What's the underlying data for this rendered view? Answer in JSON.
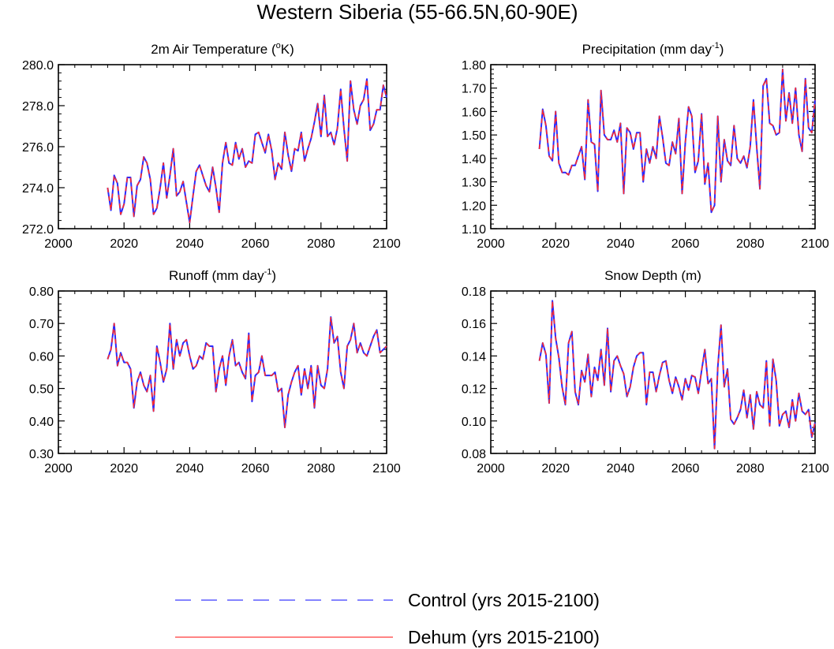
{
  "figure": {
    "title": "Western Siberia (55-66.5N,60-90E)"
  },
  "legend": {
    "entries": [
      {
        "label": "Control (yrs 2015-2100)",
        "color": "#3b3bff",
        "style": "dashed"
      },
      {
        "label": "Dehum (yrs 2015-2100)",
        "color": "#ff3b3b",
        "style": "solid"
      }
    ]
  },
  "colors": {
    "control": "#2a2aff",
    "dehum": "#ff2a2a",
    "axis": "#000000"
  },
  "chart_data": [
    {
      "id": "temperature",
      "type": "line",
      "title": "2m Air Temperature (",
      "title_sup": "o",
      "title_tail": "K)",
      "xlim": [
        2000,
        2100
      ],
      "ylim": [
        272,
        280
      ],
      "yticks": [
        "272.0",
        "274.0",
        "276.0",
        "278.0",
        "280.0"
      ],
      "xticks": [
        "2000",
        "2020",
        "2040",
        "2060",
        "2080",
        "2100"
      ],
      "x_start": 2015,
      "series": [
        {
          "name": "Control (yrs 2015-2100)",
          "values": [
            274.0,
            272.9,
            274.6,
            274.2,
            272.7,
            273.2,
            274.5,
            274.5,
            272.6,
            274.1,
            274.4,
            275.5,
            275.2,
            274.4,
            272.7,
            273.0,
            274.0,
            275.2,
            273.5,
            274.6,
            275.9,
            273.6,
            273.8,
            274.3,
            273.3,
            272.3,
            273.6,
            274.8,
            275.1,
            274.6,
            274.1,
            273.8,
            275.0,
            274.0,
            272.8,
            275.2,
            276.2,
            275.2,
            275.1,
            276.2,
            275.4,
            275.9,
            275.0,
            275.3,
            275.2,
            276.6,
            276.7,
            276.2,
            275.7,
            276.6,
            275.8,
            274.4,
            275.2,
            274.9,
            276.7,
            275.6,
            274.8,
            275.9,
            275.8,
            276.7,
            275.3,
            275.9,
            276.4,
            277.2,
            278.1,
            276.5,
            278.5,
            276.5,
            276.7,
            276.1,
            276.9,
            278.8,
            276.9,
            275.3,
            279.2,
            277.8,
            277.1,
            278.0,
            278.3,
            279.3,
            276.8,
            277.1,
            277.8,
            277.8,
            279.0,
            278.4
          ]
        },
        {
          "name": "Dehum (yrs 2015-2100)",
          "values": [
            274.0,
            272.9,
            274.6,
            274.2,
            272.7,
            273.2,
            274.5,
            274.5,
            272.6,
            274.1,
            274.4,
            275.5,
            275.2,
            274.4,
            272.7,
            273.0,
            274.0,
            275.2,
            273.5,
            274.6,
            275.9,
            273.6,
            273.8,
            274.3,
            273.3,
            272.3,
            273.6,
            274.8,
            275.1,
            274.6,
            274.1,
            273.8,
            275.0,
            274.0,
            272.8,
            275.2,
            276.2,
            275.2,
            275.1,
            276.2,
            275.4,
            275.9,
            275.0,
            275.3,
            275.2,
            276.6,
            276.7,
            276.2,
            275.7,
            276.6,
            275.8,
            274.4,
            275.2,
            274.9,
            276.7,
            275.6,
            274.8,
            275.9,
            275.8,
            276.7,
            275.3,
            275.9,
            276.4,
            277.2,
            278.1,
            276.5,
            278.5,
            276.5,
            276.7,
            276.1,
            276.9,
            278.8,
            276.9,
            275.3,
            279.2,
            277.8,
            277.1,
            278.0,
            278.3,
            279.3,
            276.8,
            277.1,
            277.8,
            277.8,
            279.0,
            278.4
          ]
        }
      ]
    },
    {
      "id": "precip",
      "type": "line",
      "title": "Precipitation (mm day",
      "title_sup": "-1",
      "title_tail": ")",
      "xlim": [
        2000,
        2100
      ],
      "ylim": [
        1.1,
        1.8
      ],
      "yticks": [
        "1.10",
        "1.20",
        "1.30",
        "1.40",
        "1.50",
        "1.60",
        "1.70",
        "1.80"
      ],
      "xticks": [
        "2000",
        "2020",
        "2040",
        "2060",
        "2080",
        "2100"
      ],
      "x_start": 2015,
      "series": [
        {
          "name": "Control (yrs 2015-2100)",
          "values": [
            1.44,
            1.61,
            1.54,
            1.41,
            1.39,
            1.6,
            1.38,
            1.34,
            1.34,
            1.33,
            1.37,
            1.37,
            1.41,
            1.45,
            1.31,
            1.65,
            1.47,
            1.46,
            1.26,
            1.69,
            1.5,
            1.48,
            1.48,
            1.52,
            1.47,
            1.55,
            1.25,
            1.53,
            1.51,
            1.44,
            1.51,
            1.51,
            1.3,
            1.44,
            1.38,
            1.45,
            1.4,
            1.58,
            1.49,
            1.38,
            1.37,
            1.47,
            1.42,
            1.57,
            1.25,
            1.47,
            1.62,
            1.58,
            1.34,
            1.39,
            1.59,
            1.29,
            1.38,
            1.17,
            1.2,
            1.58,
            1.3,
            1.48,
            1.39,
            1.37,
            1.54,
            1.4,
            1.38,
            1.41,
            1.36,
            1.45,
            1.65,
            1.45,
            1.27,
            1.71,
            1.74,
            1.55,
            1.54,
            1.5,
            1.51,
            1.78,
            1.56,
            1.68,
            1.55,
            1.7,
            1.5,
            1.43,
            1.74,
            1.53,
            1.51,
            1.65
          ]
        },
        {
          "name": "Dehum (yrs 2015-2100)",
          "values": [
            1.44,
            1.61,
            1.54,
            1.41,
            1.39,
            1.6,
            1.38,
            1.34,
            1.34,
            1.33,
            1.37,
            1.37,
            1.41,
            1.45,
            1.31,
            1.65,
            1.47,
            1.46,
            1.26,
            1.69,
            1.5,
            1.48,
            1.48,
            1.52,
            1.47,
            1.55,
            1.25,
            1.53,
            1.51,
            1.44,
            1.51,
            1.51,
            1.3,
            1.44,
            1.38,
            1.45,
            1.4,
            1.58,
            1.49,
            1.38,
            1.37,
            1.47,
            1.42,
            1.57,
            1.25,
            1.47,
            1.62,
            1.58,
            1.34,
            1.39,
            1.59,
            1.29,
            1.38,
            1.17,
            1.2,
            1.58,
            1.3,
            1.48,
            1.39,
            1.37,
            1.54,
            1.4,
            1.38,
            1.41,
            1.36,
            1.45,
            1.65,
            1.45,
            1.27,
            1.71,
            1.74,
            1.55,
            1.54,
            1.5,
            1.51,
            1.78,
            1.56,
            1.68,
            1.55,
            1.7,
            1.5,
            1.43,
            1.74,
            1.53,
            1.51,
            1.65
          ]
        }
      ]
    },
    {
      "id": "runoff",
      "type": "line",
      "title": "Runoff (mm day",
      "title_sup": "-1",
      "title_tail": ")",
      "xlim": [
        2000,
        2100
      ],
      "ylim": [
        0.3,
        0.8
      ],
      "yticks": [
        "0.30",
        "0.40",
        "0.50",
        "0.60",
        "0.70",
        "0.80"
      ],
      "xticks": [
        "2000",
        "2020",
        "2040",
        "2060",
        "2080",
        "2100"
      ],
      "x_start": 2015,
      "series": [
        {
          "name": "Control (yrs 2015-2100)",
          "values": [
            0.59,
            0.62,
            0.7,
            0.57,
            0.61,
            0.58,
            0.58,
            0.56,
            0.44,
            0.52,
            0.55,
            0.51,
            0.49,
            0.54,
            0.43,
            0.63,
            0.58,
            0.52,
            0.56,
            0.7,
            0.56,
            0.65,
            0.6,
            0.64,
            0.65,
            0.6,
            0.56,
            0.57,
            0.6,
            0.59,
            0.64,
            0.63,
            0.63,
            0.49,
            0.56,
            0.6,
            0.51,
            0.6,
            0.65,
            0.57,
            0.58,
            0.55,
            0.53,
            0.67,
            0.46,
            0.54,
            0.55,
            0.6,
            0.54,
            0.54,
            0.54,
            0.55,
            0.49,
            0.5,
            0.38,
            0.48,
            0.52,
            0.55,
            0.57,
            0.48,
            0.56,
            0.5,
            0.57,
            0.44,
            0.57,
            0.51,
            0.5,
            0.56,
            0.72,
            0.64,
            0.66,
            0.55,
            0.5,
            0.63,
            0.65,
            0.7,
            0.61,
            0.64,
            0.61,
            0.6,
            0.63,
            0.66,
            0.68,
            0.61,
            0.62,
            0.63
          ]
        },
        {
          "name": "Dehum (yrs 2015-2100)",
          "values": [
            0.59,
            0.62,
            0.7,
            0.57,
            0.61,
            0.58,
            0.58,
            0.56,
            0.44,
            0.52,
            0.55,
            0.51,
            0.49,
            0.54,
            0.43,
            0.63,
            0.58,
            0.52,
            0.56,
            0.7,
            0.56,
            0.65,
            0.6,
            0.64,
            0.65,
            0.6,
            0.56,
            0.57,
            0.6,
            0.59,
            0.64,
            0.63,
            0.63,
            0.49,
            0.56,
            0.6,
            0.51,
            0.6,
            0.65,
            0.57,
            0.58,
            0.55,
            0.53,
            0.67,
            0.46,
            0.54,
            0.55,
            0.6,
            0.54,
            0.54,
            0.54,
            0.55,
            0.49,
            0.5,
            0.38,
            0.48,
            0.52,
            0.55,
            0.57,
            0.48,
            0.56,
            0.5,
            0.57,
            0.44,
            0.57,
            0.51,
            0.5,
            0.56,
            0.72,
            0.64,
            0.66,
            0.55,
            0.5,
            0.63,
            0.65,
            0.7,
            0.61,
            0.64,
            0.61,
            0.6,
            0.63,
            0.66,
            0.68,
            0.61,
            0.62,
            0.63
          ]
        }
      ]
    },
    {
      "id": "snow",
      "type": "line",
      "title": "Snow Depth (m)",
      "title_sup": "",
      "title_tail": "",
      "xlim": [
        2000,
        2100
      ],
      "ylim": [
        0.08,
        0.18
      ],
      "yticks": [
        "0.08",
        "0.10",
        "0.12",
        "0.14",
        "0.16",
        "0.18"
      ],
      "xticks": [
        "2000",
        "2020",
        "2040",
        "2060",
        "2080",
        "2100"
      ],
      "x_start": 2015,
      "series": [
        {
          "name": "Control (yrs 2015-2100)",
          "values": [
            0.137,
            0.148,
            0.141,
            0.111,
            0.174,
            0.151,
            0.139,
            0.121,
            0.11,
            0.148,
            0.155,
            0.118,
            0.11,
            0.131,
            0.124,
            0.141,
            0.115,
            0.133,
            0.125,
            0.144,
            0.122,
            0.157,
            0.118,
            0.137,
            0.14,
            0.134,
            0.129,
            0.115,
            0.121,
            0.133,
            0.14,
            0.142,
            0.142,
            0.11,
            0.13,
            0.13,
            0.118,
            0.128,
            0.136,
            0.137,
            0.125,
            0.117,
            0.127,
            0.121,
            0.113,
            0.126,
            0.119,
            0.128,
            0.127,
            0.117,
            0.131,
            0.144,
            0.123,
            0.126,
            0.083,
            0.133,
            0.159,
            0.121,
            0.132,
            0.101,
            0.098,
            0.102,
            0.107,
            0.119,
            0.102,
            0.116,
            0.095,
            0.118,
            0.11,
            0.108,
            0.137,
            0.097,
            0.138,
            0.125,
            0.097,
            0.104,
            0.106,
            0.096,
            0.113,
            0.1,
            0.117,
            0.106,
            0.104,
            0.107,
            0.09,
            0.099
          ]
        },
        {
          "name": "Dehum (yrs 2015-2100)",
          "values": [
            0.137,
            0.148,
            0.141,
            0.111,
            0.174,
            0.151,
            0.139,
            0.121,
            0.11,
            0.148,
            0.155,
            0.118,
            0.11,
            0.131,
            0.124,
            0.141,
            0.115,
            0.133,
            0.125,
            0.144,
            0.122,
            0.157,
            0.118,
            0.137,
            0.14,
            0.134,
            0.129,
            0.115,
            0.121,
            0.133,
            0.14,
            0.142,
            0.142,
            0.11,
            0.13,
            0.13,
            0.118,
            0.128,
            0.136,
            0.137,
            0.125,
            0.117,
            0.127,
            0.121,
            0.113,
            0.126,
            0.119,
            0.128,
            0.127,
            0.117,
            0.131,
            0.144,
            0.123,
            0.126,
            0.083,
            0.133,
            0.159,
            0.121,
            0.132,
            0.101,
            0.098,
            0.102,
            0.107,
            0.119,
            0.102,
            0.116,
            0.095,
            0.118,
            0.11,
            0.108,
            0.137,
            0.097,
            0.138,
            0.125,
            0.097,
            0.104,
            0.106,
            0.096,
            0.113,
            0.1,
            0.117,
            0.106,
            0.104,
            0.107,
            0.09,
            0.099
          ]
        }
      ]
    }
  ]
}
